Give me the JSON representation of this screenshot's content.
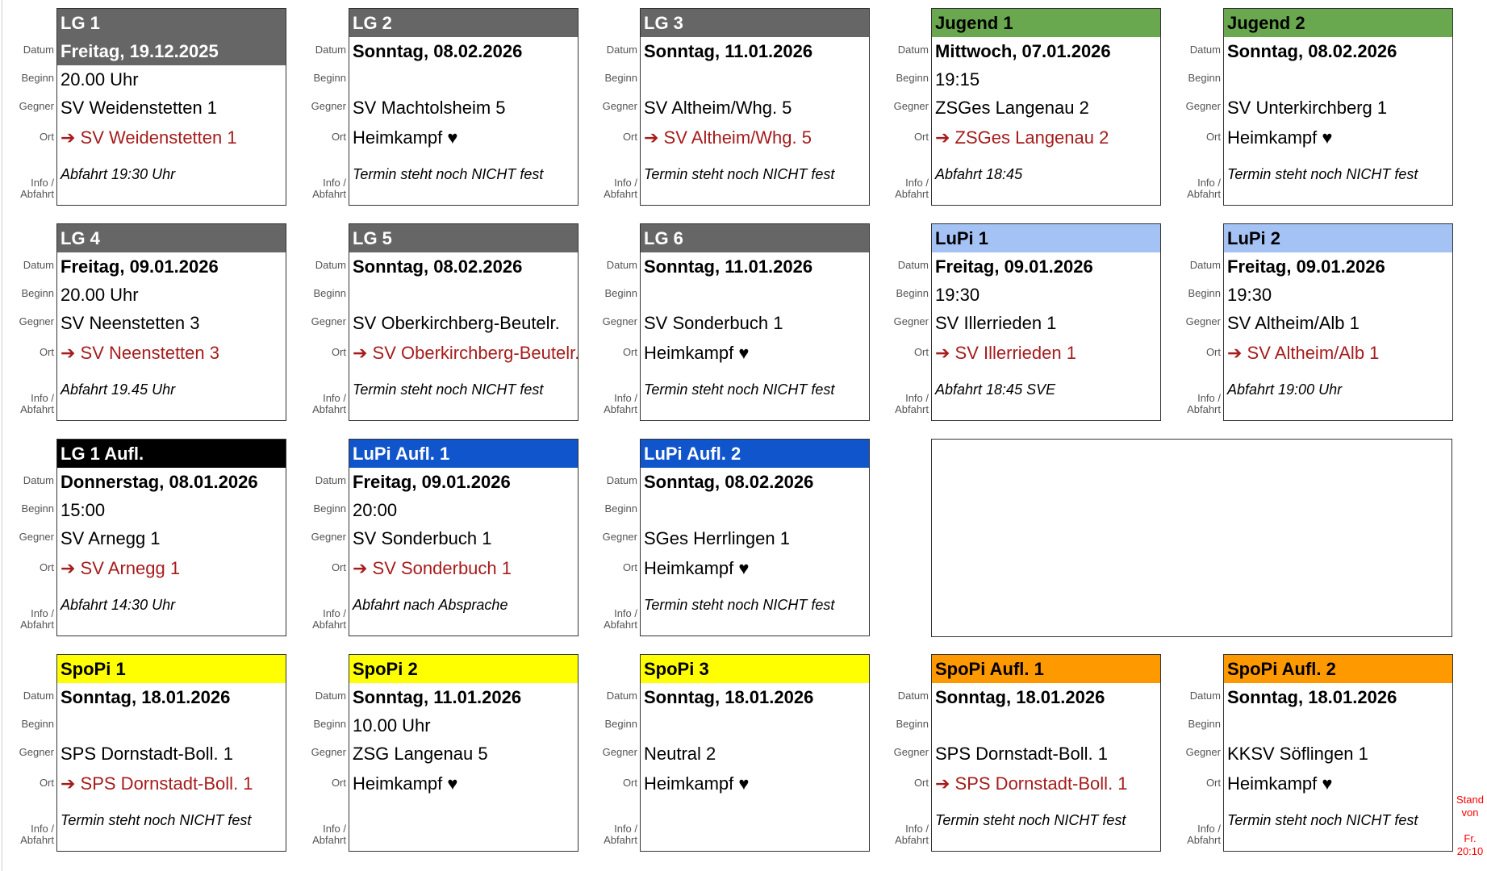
{
  "row_labels": {
    "datum": "Datum",
    "beginn": "Beginn",
    "gegner": "Gegner",
    "ort": "Ort",
    "info": "Info / Abfahrt"
  },
  "stand": {
    "line1": "Stand",
    "line2": "von",
    "line3": "Fr.",
    "line4": "20:10"
  },
  "cards": [
    {
      "title": "LG 1",
      "header_color": "#666666",
      "header_text": "#ffffff",
      "date_in_header": true,
      "date": "Freitag, 19.12.2025",
      "beginn": "20.00 Uhr",
      "gegner": "SV Weidenstetten 1",
      "ort": "➔ SV Weidenstetten 1",
      "away": true,
      "info": "Abfahrt 19:30 Uhr"
    },
    {
      "title": "LG 2",
      "header_color": "#666666",
      "header_text": "#ffffff",
      "date": "Sonntag, 08.02.2026",
      "beginn": "",
      "gegner": "SV Machtolsheim 5",
      "ort": "Heimkampf ♥",
      "away": false,
      "info": "Termin steht noch NICHT fest"
    },
    {
      "title": "LG 3",
      "header_color": "#666666",
      "header_text": "#ffffff",
      "date": "Sonntag, 11.01.2026",
      "beginn": "",
      "gegner": "SV Altheim/Whg. 5",
      "ort": "➔ SV Altheim/Whg. 5",
      "away": true,
      "info": "Termin steht noch NICHT fest"
    },
    {
      "title": "Jugend 1",
      "header_color": "#6aa84f",
      "header_text": "#000000",
      "date": "Mittwoch, 07.01.2026",
      "beginn": "19:15",
      "gegner": "ZSGes Langenau 2",
      "ort": "➔ ZSGes Langenau 2",
      "away": true,
      "info": "Abfahrt 18:45"
    },
    {
      "title": "Jugend 2",
      "header_color": "#6aa84f",
      "header_text": "#000000",
      "date": "Sonntag, 08.02.2026",
      "beginn": "",
      "gegner": "SV Unterkirchberg 1",
      "ort": "Heimkampf ♥",
      "away": false,
      "info": "Termin steht noch NICHT fest"
    },
    {
      "title": "LG 4",
      "header_color": "#666666",
      "header_text": "#ffffff",
      "date": "Freitag, 09.01.2026",
      "beginn": "20.00 Uhr",
      "gegner": "SV Neenstetten 3",
      "ort": "➔ SV Neenstetten 3",
      "away": true,
      "info": "Abfahrt 19.45 Uhr"
    },
    {
      "title": "LG 5",
      "header_color": "#666666",
      "header_text": "#ffffff",
      "date": "Sonntag, 08.02.2026",
      "beginn": "",
      "gegner": "SV Oberkirchberg-Beutelr.",
      "ort": "➔ SV Oberkirchberg-Beutelr.",
      "away": true,
      "info": "Termin steht noch NICHT fest"
    },
    {
      "title": "LG 6",
      "header_color": "#666666",
      "header_text": "#ffffff",
      "date": "Sonntag, 11.01.2026",
      "beginn": "",
      "gegner": "SV Sonderbuch 1",
      "ort": "Heimkampf ♥",
      "away": false,
      "info": "Termin steht noch NICHT fest"
    },
    {
      "title": "LuPi 1",
      "header_color": "#a4c2f4",
      "header_text": "#000000",
      "date": "Freitag, 09.01.2026",
      "beginn": "19:30",
      "gegner": "SV Illerrieden 1",
      "ort": "➔ SV Illerrieden 1",
      "away": true,
      "info": "Abfahrt 18:45 SVE"
    },
    {
      "title": "LuPi 2",
      "header_color": "#a4c2f4",
      "header_text": "#000000",
      "date": "Freitag, 09.01.2026",
      "beginn": "19:30",
      "gegner": "SV Altheim/Alb 1",
      "ort": "➔ SV Altheim/Alb 1",
      "away": true,
      "info": "Abfahrt 19:00 Uhr"
    },
    {
      "title": "LG 1 Aufl.",
      "header_color": "#000000",
      "header_text": "#ffffff",
      "date": "Donnerstag, 08.01.2026",
      "beginn": "15:00",
      "gegner": "SV Arnegg 1",
      "ort": "➔ SV Arnegg 1",
      "away": true,
      "info": "Abfahrt 14:30 Uhr"
    },
    {
      "title": "LuPi Aufl. 1",
      "header_color": "#1155cc",
      "header_text": "#ffffff",
      "date": "Freitag, 09.01.2026",
      "beginn": "20:00",
      "gegner": "SV Sonderbuch 1",
      "ort": "➔ SV Sonderbuch 1",
      "away": true,
      "info": "Abfahrt nach Absprache"
    },
    {
      "title": "LuPi Aufl. 2",
      "header_color": "#1155cc",
      "header_text": "#ffffff",
      "date": "Sonntag, 08.02.2026",
      "beginn": "",
      "gegner": "SGes Herrlingen 1",
      "ort": "Heimkampf ♥",
      "away": false,
      "info": "Termin steht noch NICHT fest"
    },
    null,
    null,
    {
      "title": "SpoPi 1",
      "header_color": "#ffff00",
      "header_text": "#000000",
      "date": "Sonntag, 18.01.2026",
      "beginn": "",
      "gegner": "SPS Dornstadt-Boll. 1",
      "ort": "➔ SPS Dornstadt-Boll. 1",
      "away": true,
      "info": "Termin steht noch NICHT fest"
    },
    {
      "title": "SpoPi 2",
      "header_color": "#ffff00",
      "header_text": "#000000",
      "date": "Sonntag, 11.01.2026",
      "beginn": "10.00 Uhr",
      "gegner": "ZSG Langenau 5",
      "ort": "Heimkampf ♥",
      "away": false,
      "info": ""
    },
    {
      "title": "SpoPi 3",
      "header_color": "#ffff00",
      "header_text": "#000000",
      "date": "Sonntag, 18.01.2026",
      "beginn": "",
      "gegner": "Neutral 2",
      "ort": "Heimkampf ♥",
      "away": false,
      "info": ""
    },
    {
      "title": "SpoPi Aufl. 1",
      "header_color": "#ff9900",
      "header_text": "#000000",
      "date": "Sonntag, 18.01.2026",
      "beginn": "",
      "gegner": "SPS Dornstadt-Boll. 1",
      "ort": "➔ SPS Dornstadt-Boll. 1",
      "away": true,
      "info": "Termin steht noch NICHT fest"
    },
    {
      "title": "SpoPi Aufl. 2",
      "header_color": "#ff9900",
      "header_text": "#000000",
      "date": "Sonntag, 18.01.2026",
      "beginn": "",
      "gegner": "KKSV Söflingen 1",
      "ort": "Heimkampf ♥",
      "away": false,
      "info": "Termin steht noch NICHT fest"
    }
  ]
}
